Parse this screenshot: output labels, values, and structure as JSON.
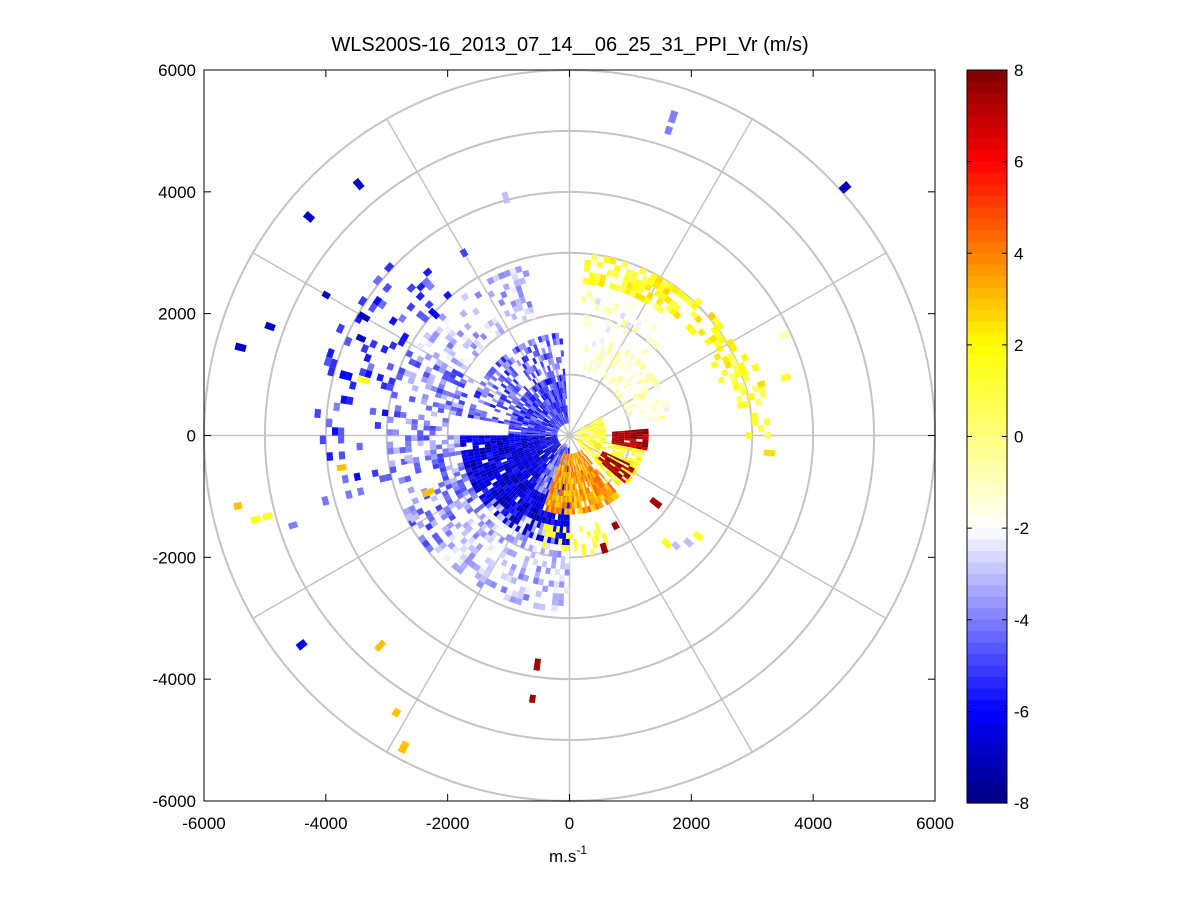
{
  "chart_data": {
    "type": "heatmap",
    "subtype": "polar-ppi-scan",
    "title": "WLS200S-16_2013_07_14__06_25_31_PPI_Vr (m/s)",
    "xlabel": "m.s",
    "xlabel_superscript": "-1",
    "ylabel": "",
    "xlim": [
      -6000,
      6000
    ],
    "ylim": [
      -6000,
      6000
    ],
    "x_ticks": [
      "-6000",
      "-4000",
      "-2000",
      "0",
      "2000",
      "4000",
      "6000"
    ],
    "y_ticks": [
      "6000",
      "4000",
      "2000",
      "0",
      "-2000",
      "-4000",
      "-6000"
    ],
    "range_rings": [
      1000,
      2000,
      3000,
      4000,
      5000,
      6000
    ],
    "spoke_angles_deg": [
      0,
      30,
      60,
      90,
      120,
      150,
      180,
      210,
      240,
      270,
      300,
      330
    ],
    "grid": true,
    "colorbar": {
      "range": [
        -8,
        8
      ],
      "ticks": [
        "8",
        "6",
        "4",
        "2",
        "0",
        "-2",
        "-4",
        "-6",
        "-8"
      ],
      "colormap": [
        "#00007f",
        "#0000ff",
        "#7f7fff",
        "#ffffff",
        "#ffff7f",
        "#ffff00",
        "#ff8000",
        "#ff0000",
        "#7f0000"
      ],
      "levels": 64
    },
    "regions": [
      {
        "az": [
          180,
          270
        ],
        "r": [
          200,
          1800
        ],
        "v": -6.5,
        "density": 0.95
      },
      {
        "az": [
          270,
          355
        ],
        "r": [
          200,
          1000
        ],
        "v": -5.0,
        "density": 0.9
      },
      {
        "az": [
          280,
          355
        ],
        "r": [
          1000,
          1700
        ],
        "v": -4.5,
        "density": 0.55
      },
      {
        "az": [
          190,
          215
        ],
        "r": [
          150,
          1000
        ],
        "v": -4.0,
        "density": 0.9
      },
      {
        "az": [
          140,
          200
        ],
        "r": [
          300,
          1300
        ],
        "v": 3.5,
        "density": 0.92
      },
      {
        "az": [
          100,
          135
        ],
        "r": [
          150,
          1200
        ],
        "v": 1.5,
        "density": 0.7
      },
      {
        "az": [
          60,
          100
        ],
        "r": [
          100,
          600
        ],
        "v": 1.0,
        "density": 0.85
      },
      {
        "az": [
          85,
          100
        ],
        "r": [
          700,
          1300
        ],
        "v": 7.5,
        "density": 0.9
      },
      {
        "az": [
          115,
          130
        ],
        "r": [
          600,
          1200
        ],
        "v": 7.5,
        "density": 0.8
      },
      {
        "az": [
          10,
          80
        ],
        "r": [
          1000,
          1700
        ],
        "v": -1.2,
        "density": 0.45
      },
      {
        "az": [
          5,
          40
        ],
        "r": [
          2500,
          3000
        ],
        "v": 1.5,
        "density": 0.6
      },
      {
        "az": [
          25,
          70
        ],
        "r": [
          2600,
          3100
        ],
        "v": 1.8,
        "density": 0.45
      },
      {
        "az": [
          65,
          90
        ],
        "r": [
          2800,
          3300
        ],
        "v": 1.2,
        "density": 0.4
      },
      {
        "az": [
          5,
          45
        ],
        "r": [
          1800,
          2400
        ],
        "v": -1.5,
        "density": 0.35
      },
      {
        "az": [
          180,
          230
        ],
        "r": [
          1500,
          2900
        ],
        "v": -3.0,
        "density": 0.5
      },
      {
        "az": [
          230,
          300
        ],
        "r": [
          1800,
          3000
        ],
        "v": -4.0,
        "density": 0.45
      },
      {
        "az": [
          300,
          345
        ],
        "r": [
          2000,
          2900
        ],
        "v": -3.0,
        "density": 0.35
      },
      {
        "az": [
          250,
          320
        ],
        "r": [
          3000,
          4200
        ],
        "v": -5.0,
        "density": 0.15
      },
      {
        "az": [
          160,
          200
        ],
        "r": [
          1500,
          2000
        ],
        "v": 1.5,
        "density": 0.3
      }
    ],
    "scatter": [
      {
        "az": 285,
        "r": 5500,
        "v": -7.0
      },
      {
        "az": 290,
        "r": 5150,
        "v": -7.0
      },
      {
        "az": 300,
        "r": 4550,
        "v": -7.0
      },
      {
        "az": 310,
        "r": 5500,
        "v": -7.0
      },
      {
        "az": 320,
        "r": 5300,
        "v": -7.0
      },
      {
        "az": 300,
        "r": 3800,
        "v": -7.0
      },
      {
        "az": 295,
        "r": 3700,
        "v": -7.0
      },
      {
        "az": 312,
        "r": 2900,
        "v": -6.0
      },
      {
        "az": 330,
        "r": 3400,
        "v": -5.0
      },
      {
        "az": 345,
        "r": 3950,
        "v": -3.0
      },
      {
        "az": 8,
        "r": 4600,
        "v": -2.0
      },
      {
        "az": 18,
        "r": 5400,
        "v": -4.0
      },
      {
        "az": 18,
        "r": 5200,
        "v": -4.0
      },
      {
        "az": 48,
        "r": 6000,
        "v": -7.0
      },
      {
        "az": 65,
        "r": 3800,
        "v": -0.8
      },
      {
        "az": 75,
        "r": 3600,
        "v": 1.5
      },
      {
        "az": 258,
        "r": 5500,
        "v": 3.0
      },
      {
        "az": 255,
        "r": 5250,
        "v": 1.5
      },
      {
        "az": 255,
        "r": 5050,
        "v": 1.5
      },
      {
        "az": 262,
        "r": 3700,
        "v": 3.0
      },
      {
        "az": 252,
        "r": 4700,
        "v": -4.0
      },
      {
        "az": 232,
        "r": 5500,
        "v": -6.5
      },
      {
        "az": 222,
        "r": 4550,
        "v": 3.0
      },
      {
        "az": 212,
        "r": 5300,
        "v": 3.0
      },
      {
        "az": 208,
        "r": 5700,
        "v": 3.0
      },
      {
        "az": 188,
        "r": 3700,
        "v": 7.5
      },
      {
        "az": 188,
        "r": 4300,
        "v": 7.5
      },
      {
        "az": 163,
        "r": 1850,
        "v": 7.5
      },
      {
        "az": 153,
        "r": 1600,
        "v": 7.5
      },
      {
        "az": 128,
        "r": 1700,
        "v": 7.5
      },
      {
        "az": 138,
        "r": 2300,
        "v": 1.5
      },
      {
        "az": 136,
        "r": 2450,
        "v": -3.0
      },
      {
        "az": 132,
        "r": 2550,
        "v": -3.0
      },
      {
        "az": 128,
        "r": 2600,
        "v": 1.5
      },
      {
        "az": 75,
        "r": 3200,
        "v": 2.5
      },
      {
        "az": 95,
        "r": 3200,
        "v": 2.5
      },
      {
        "az": 242,
        "r": 2800,
        "v": -3.0
      },
      {
        "az": 262,
        "r": 2600,
        "v": -3.0
      },
      {
        "az": 248,
        "r": 2400,
        "v": 3.0
      },
      {
        "az": 285,
        "r": 3400,
        "v": 1.5
      }
    ]
  }
}
